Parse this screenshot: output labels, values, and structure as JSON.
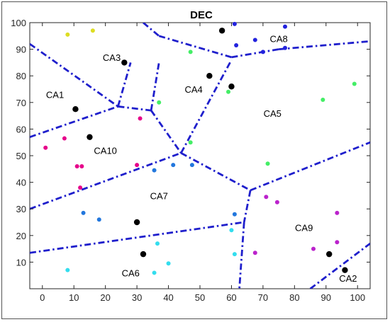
{
  "chart_data": {
    "type": "scatter",
    "title": "DEC",
    "xlabel": "",
    "ylabel": "",
    "xlim": [
      -4,
      104
    ],
    "ylim": [
      0,
      100
    ],
    "x_ticks": [
      0,
      10,
      20,
      30,
      40,
      50,
      60,
      70,
      80,
      90,
      100
    ],
    "y_ticks": [
      10,
      20,
      30,
      40,
      50,
      60,
      70,
      80,
      90,
      100
    ],
    "grid": false,
    "legend": "none",
    "region_labels": [
      {
        "label": "CA1",
        "x": 4,
        "y": 73
      },
      {
        "label": "CA2",
        "x": 97,
        "y": 4
      },
      {
        "label": "CA3",
        "x": 22,
        "y": 87
      },
      {
        "label": "CA4",
        "x": 48,
        "y": 75
      },
      {
        "label": "CA5",
        "x": 73,
        "y": 66
      },
      {
        "label": "CA6",
        "x": 28,
        "y": 6
      },
      {
        "label": "CA7",
        "x": 37,
        "y": 35
      },
      {
        "label": "CA8",
        "x": 75,
        "y": 94
      },
      {
        "label": "CA9",
        "x": 83,
        "y": 23
      },
      {
        "label": "CA10",
        "x": 20,
        "y": 52
      }
    ],
    "boundaries": [
      [
        [
          -4,
          92
        ],
        [
          24,
          68.5
        ]
      ],
      [
        [
          24,
          68.5
        ],
        [
          34.5,
          67
        ]
      ],
      [
        [
          -4,
          57
        ],
        [
          24,
          68.5
        ]
      ],
      [
        [
          24,
          68.5
        ],
        [
          28,
          85
        ]
      ],
      [
        [
          34.5,
          67
        ],
        [
          37,
          85
        ]
      ],
      [
        [
          32,
          100
        ],
        [
          37,
          95
        ]
      ],
      [
        [
          37,
          95
        ],
        [
          60,
          87
        ]
      ],
      [
        [
          60,
          87
        ],
        [
          75,
          90
        ]
      ],
      [
        [
          75,
          90
        ],
        [
          104,
          93
        ]
      ],
      [
        [
          34.5,
          67
        ],
        [
          44,
          51
        ]
      ],
      [
        [
          44,
          51
        ],
        [
          60,
          86
        ]
      ],
      [
        [
          -4,
          30
        ],
        [
          44,
          51
        ]
      ],
      [
        [
          44,
          51
        ],
        [
          66,
          37
        ]
      ],
      [
        [
          66,
          37
        ],
        [
          104,
          55
        ]
      ],
      [
        [
          66,
          37
        ],
        [
          64,
          25
        ]
      ],
      [
        [
          -4,
          13.5
        ],
        [
          64,
          25
        ]
      ],
      [
        [
          64,
          25
        ],
        [
          62.5,
          0
        ]
      ],
      [
        [
          85,
          0
        ],
        [
          104,
          17
        ]
      ]
    ],
    "series": [
      {
        "color": "#000000",
        "size": 4.2,
        "points": [
          [
            10.5,
            67.5
          ],
          [
            15,
            57
          ],
          [
            26,
            85
          ],
          [
            30,
            25
          ],
          [
            32,
            13
          ],
          [
            53,
            80
          ],
          [
            57,
            97
          ],
          [
            60,
            76
          ],
          [
            91,
            13
          ],
          [
            96,
            7
          ]
        ]
      },
      {
        "color": "#dddd22",
        "size": 3,
        "points": [
          [
            8,
            95.5
          ],
          [
            16,
            97
          ]
        ]
      },
      {
        "color": "#44ee66",
        "size": 3,
        "points": [
          [
            37,
            70
          ],
          [
            47,
            89
          ],
          [
            47,
            55
          ],
          [
            59,
            74
          ],
          [
            71.5,
            47
          ],
          [
            89,
            71
          ],
          [
            99,
            77
          ]
        ]
      },
      {
        "color": "#e6008a",
        "size": 3,
        "points": [
          [
            1,
            53
          ],
          [
            7,
            56.5
          ],
          [
            11,
            46
          ],
          [
            12.5,
            46
          ],
          [
            12,
            38
          ],
          [
            30,
            46.5
          ],
          [
            31,
            64
          ]
        ]
      },
      {
        "color": "#2277dd",
        "size": 3,
        "points": [
          [
            13,
            28.5
          ],
          [
            18,
            26
          ],
          [
            35.5,
            44.5
          ],
          [
            41.5,
            46.5
          ],
          [
            47.5,
            46.5
          ],
          [
            61,
            28
          ]
        ]
      },
      {
        "color": "#33ddee",
        "size": 3,
        "points": [
          [
            8,
            7
          ],
          [
            36.5,
            17
          ],
          [
            35.5,
            6
          ],
          [
            40,
            9.5
          ],
          [
            60,
            22
          ],
          [
            61,
            13
          ]
        ]
      },
      {
        "color": "#bb22cc",
        "size": 3,
        "points": [
          [
            67.5,
            13.5
          ],
          [
            71,
            34.5
          ],
          [
            74.5,
            32.5
          ],
          [
            86,
            15
          ],
          [
            93.5,
            28.5
          ],
          [
            93.5,
            17.5
          ]
        ]
      },
      {
        "color": "#2222dd",
        "size": 3,
        "points": [
          [
            61,
            99.5
          ],
          [
            61.5,
            91.5
          ],
          [
            67.5,
            93.5
          ],
          [
            70,
            89
          ],
          [
            77,
            98.5
          ],
          [
            77,
            90.5
          ]
        ]
      }
    ]
  }
}
